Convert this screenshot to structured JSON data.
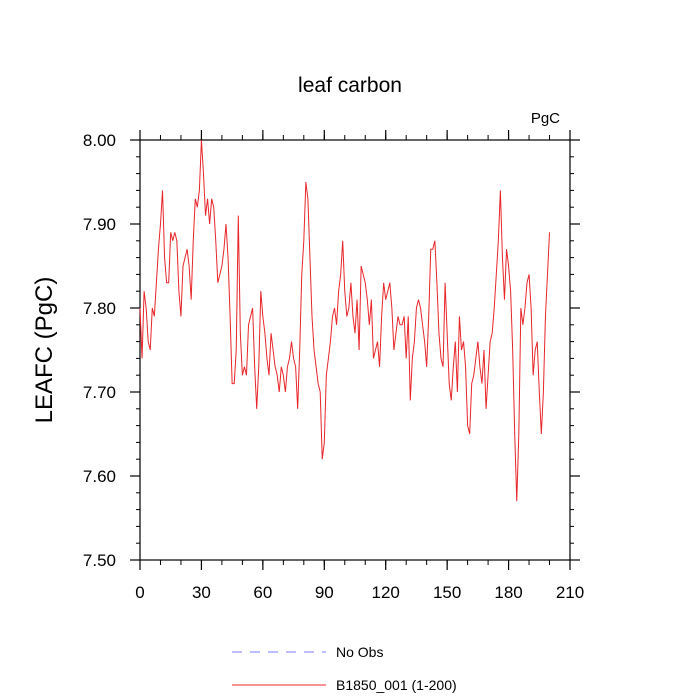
{
  "chart_data": {
    "type": "line",
    "title": "leaf carbon",
    "units_label": "PgC",
    "ylabel": "LEAFC  (PgC)",
    "xlabel": "",
    "xlim": [
      0,
      210
    ],
    "ylim": [
      7.5,
      8.0
    ],
    "x_ticks": [
      0,
      30,
      60,
      90,
      120,
      150,
      180,
      210
    ],
    "x_tick_labels": [
      "0",
      "30",
      "60",
      "90",
      "120",
      "150",
      "180",
      "210"
    ],
    "y_ticks": [
      7.5,
      7.6,
      7.7,
      7.8,
      7.9,
      8.0
    ],
    "y_tick_labels": [
      "7.50",
      "7.60",
      "7.70",
      "7.80",
      "7.90",
      "8.00"
    ],
    "grid": false,
    "legend": [
      {
        "label": "No Obs",
        "color": "#7b7bff",
        "style": "dashed"
      },
      {
        "label": "B1850_001 (1-200)",
        "color": "#e8262a",
        "style": "solid"
      }
    ],
    "series": [
      {
        "name": "B1850_001 (1-200)",
        "color": "#e8262a",
        "x_start": 0,
        "x_step": 1,
        "values": [
          7.8,
          7.74,
          7.82,
          7.8,
          7.76,
          7.75,
          7.8,
          7.79,
          7.83,
          7.87,
          7.9,
          7.94,
          7.86,
          7.83,
          7.83,
          7.89,
          7.88,
          7.89,
          7.88,
          7.82,
          7.79,
          7.85,
          7.86,
          7.87,
          7.85,
          7.81,
          7.88,
          7.93,
          7.92,
          7.94,
          8.0,
          7.96,
          7.91,
          7.93,
          7.9,
          7.93,
          7.92,
          7.88,
          7.83,
          7.84,
          7.85,
          7.87,
          7.9,
          7.86,
          7.79,
          7.71,
          7.71,
          7.75,
          7.91,
          7.77,
          7.72,
          7.73,
          7.72,
          7.78,
          7.79,
          7.8,
          7.73,
          7.68,
          7.73,
          7.82,
          7.79,
          7.77,
          7.74,
          7.72,
          7.77,
          7.75,
          7.73,
          7.72,
          7.7,
          7.73,
          7.72,
          7.7,
          7.73,
          7.74,
          7.76,
          7.74,
          7.73,
          7.68,
          7.75,
          7.84,
          7.88,
          7.95,
          7.93,
          7.86,
          7.79,
          7.75,
          7.73,
          7.71,
          7.7,
          7.62,
          7.64,
          7.72,
          7.74,
          7.76,
          7.79,
          7.8,
          7.78,
          7.82,
          7.84,
          7.88,
          7.82,
          7.79,
          7.8,
          7.83,
          7.79,
          7.77,
          7.81,
          7.75,
          7.85,
          7.84,
          7.83,
          7.81,
          7.78,
          7.81,
          7.74,
          7.75,
          7.76,
          7.73,
          7.79,
          7.83,
          7.81,
          7.82,
          7.83,
          7.8,
          7.75,
          7.77,
          7.79,
          7.78,
          7.78,
          7.79,
          7.74,
          7.79,
          7.69,
          7.74,
          7.76,
          7.8,
          7.81,
          7.8,
          7.78,
          7.76,
          7.73,
          7.79,
          7.87,
          7.87,
          7.88,
          7.83,
          7.77,
          7.74,
          7.73,
          7.83,
          7.77,
          7.71,
          7.69,
          7.73,
          7.76,
          7.7,
          7.79,
          7.75,
          7.76,
          7.73,
          7.66,
          7.65,
          7.71,
          7.72,
          7.74,
          7.76,
          7.73,
          7.71,
          7.75,
          7.68,
          7.72,
          7.76,
          7.77,
          7.8,
          7.84,
          7.88,
          7.94,
          7.86,
          7.81,
          7.87,
          7.85,
          7.82,
          7.75,
          7.65,
          7.57,
          7.65,
          7.8,
          7.78,
          7.8,
          7.83,
          7.84,
          7.8,
          7.72,
          7.75,
          7.76,
          7.7,
          7.65,
          7.7,
          7.79,
          7.84,
          7.89
        ]
      }
    ]
  }
}
